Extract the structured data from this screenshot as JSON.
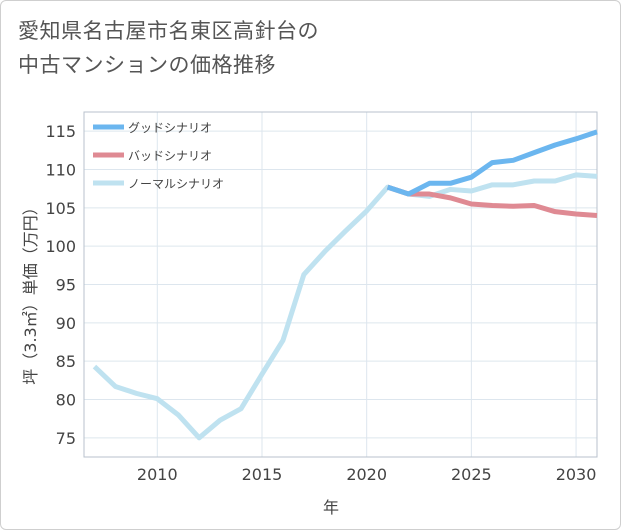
{
  "title_lines": [
    "愛知県名古屋市名東区高針台の",
    "中古マンションの価格推移"
  ],
  "chart_data": {
    "type": "line",
    "title": "愛知県名古屋市名東区高針台の中古マンションの価格推移",
    "xlabel": "年",
    "ylabel": "坪（3.3㎡）単価（万円）",
    "xlim": [
      2006.5,
      2031
    ],
    "ylim": [
      72.5,
      117.5
    ],
    "xticks": [
      2010,
      2015,
      2020,
      2025,
      2030
    ],
    "yticks": [
      75,
      80,
      85,
      90,
      95,
      100,
      105,
      110,
      115
    ],
    "grid": true,
    "legend_position": "top-left",
    "series": [
      {
        "name": "グッドシナリオ",
        "color": "#6bb6ef",
        "x": [
          2021,
          2022,
          2023,
          2024,
          2025,
          2026,
          2027,
          2028,
          2029,
          2030,
          2031
        ],
        "y": [
          107.7,
          106.8,
          108.2,
          108.2,
          109.0,
          110.9,
          111.2,
          112.2,
          113.2,
          114.0,
          114.9
        ]
      },
      {
        "name": "バッドシナリオ",
        "color": "#df8a93",
        "x": [
          2021,
          2022,
          2023,
          2024,
          2025,
          2026,
          2027,
          2028,
          2029,
          2030,
          2031
        ],
        "y": [
          107.7,
          106.8,
          106.8,
          106.3,
          105.5,
          105.3,
          105.2,
          105.3,
          104.5,
          104.2,
          104.0
        ]
      },
      {
        "name": "ノーマルシナリオ",
        "color": "#bfe2f0",
        "x": [
          2007,
          2008,
          2009,
          2010,
          2011,
          2012,
          2013,
          2014,
          2015,
          2016,
          2017,
          2018,
          2019,
          2020,
          2021,
          2022,
          2023,
          2024,
          2025,
          2026,
          2027,
          2028,
          2029,
          2030,
          2031
        ],
        "y": [
          84.3,
          81.7,
          80.8,
          80.1,
          78.0,
          75.0,
          77.3,
          78.8,
          83.3,
          87.7,
          96.3,
          99.3,
          102.0,
          104.6,
          107.7,
          106.8,
          106.5,
          107.4,
          107.2,
          108.0,
          108.0,
          108.5,
          108.5,
          109.3,
          109.1
        ]
      }
    ]
  }
}
